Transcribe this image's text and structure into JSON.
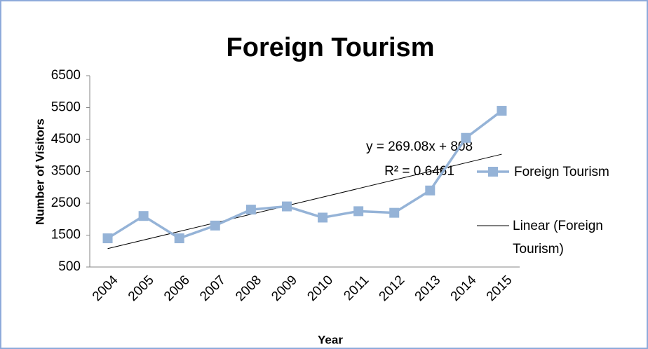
{
  "chart_data": {
    "type": "line",
    "title": "Foreign Tourism",
    "x_label": "Year",
    "y_label": "Number of Visitors",
    "categories": [
      "2004",
      "2005",
      "2006",
      "2007",
      "2008",
      "2009",
      "2010",
      "2011",
      "2012",
      "2013",
      "2014",
      "2015"
    ],
    "series": [
      {
        "name": "Foreign Tourism",
        "color": "#95b3d7",
        "values": [
          1400,
          2100,
          1400,
          1800,
          2300,
          2400,
          2050,
          2250,
          2200,
          2900,
          4550,
          5400
        ]
      }
    ],
    "trendline": {
      "name": "Linear (Foreign Tourism)",
      "color": "#000000",
      "start": 1077,
      "end": 4037,
      "equation": "y = 269.08x + 808",
      "r_squared": "R² = 0.6461"
    },
    "ylim": [
      500,
      6500
    ],
    "yticks": [
      500,
      1500,
      2500,
      3500,
      4500,
      5500,
      6500
    ],
    "grid": false
  }
}
